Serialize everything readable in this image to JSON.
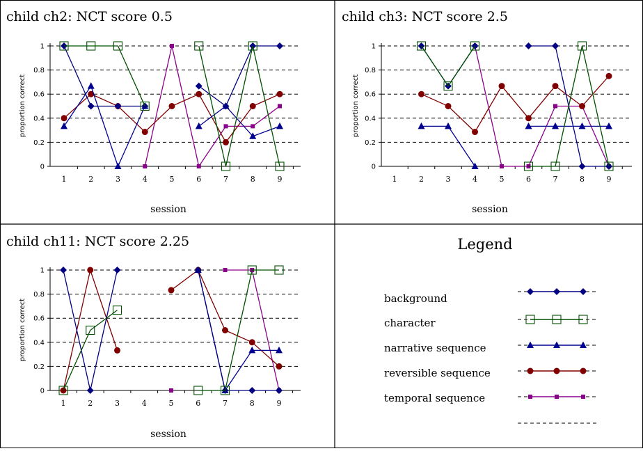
{
  "colors": {
    "background": "#000080",
    "character": "#005000",
    "narrative sequence": "#000090",
    "reversible sequence": "#800000",
    "temporal sequence": "#8B008B",
    "grid": "#000000"
  },
  "chart_data": [
    {
      "type": "line",
      "title": "child ch2: NCT score 0.5",
      "xlabel": "session",
      "ylabel": "proportion correct",
      "categories": [
        "1",
        "2",
        "3",
        "4",
        "5",
        "6",
        "7",
        "8",
        "9"
      ],
      "ylim": [
        0,
        1
      ],
      "yticks": [
        "0",
        "0.2",
        "0.4",
        "0.6",
        "0.8",
        "1"
      ],
      "grid": true,
      "series": [
        {
          "name": "background",
          "values": [
            1,
            0.5,
            0.5,
            0.5,
            null,
            0.667,
            0.5,
            1,
            1
          ]
        },
        {
          "name": "character",
          "values": [
            1,
            1,
            1,
            0.5,
            null,
            1,
            0,
            1,
            0
          ]
        },
        {
          "name": "narrative sequence",
          "values": [
            0.333,
            0.667,
            0,
            0.5,
            null,
            0.333,
            0.5,
            0.25,
            0.333
          ]
        },
        {
          "name": "reversible sequence",
          "values": [
            0.4,
            0.6,
            0.5,
            0.286,
            0.5,
            0.6,
            0.2,
            0.5,
            0.6
          ]
        },
        {
          "name": "temporal sequence",
          "values": [
            null,
            null,
            null,
            0,
            1,
            0,
            0.333,
            0.333,
            0.5
          ]
        }
      ]
    },
    {
      "type": "line",
      "title": "child ch3: NCT score 2.5",
      "xlabel": "session",
      "ylabel": "proportion correct",
      "categories": [
        "1",
        "2",
        "3",
        "4",
        "5",
        "6",
        "7",
        "8",
        "9"
      ],
      "ylim": [
        0,
        1
      ],
      "yticks": [
        "0",
        "0.2",
        "0.4",
        "0.6",
        "0.8",
        "1"
      ],
      "grid": true,
      "series": [
        {
          "name": "background",
          "values": [
            null,
            1,
            0.667,
            1,
            null,
            1,
            1,
            0,
            0
          ]
        },
        {
          "name": "character",
          "values": [
            null,
            1,
            0.667,
            1,
            null,
            0,
            0,
            1,
            0
          ]
        },
        {
          "name": "narrative sequence",
          "values": [
            null,
            0.333,
            0.333,
            0,
            null,
            0.333,
            0.333,
            0.333,
            0.333
          ]
        },
        {
          "name": "reversible sequence",
          "values": [
            null,
            0.6,
            0.5,
            0.286,
            0.667,
            0.4,
            0.667,
            0.5,
            0.75
          ]
        },
        {
          "name": "temporal sequence",
          "values": [
            null,
            null,
            null,
            1,
            0,
            0,
            0.5,
            0.5,
            0
          ]
        }
      ]
    },
    {
      "type": "line",
      "title": "child ch11: NCT score 2.25",
      "xlabel": "session",
      "ylabel": "proportion correct",
      "categories": [
        "1",
        "2",
        "3",
        "4",
        "5",
        "6",
        "7",
        "8",
        "9"
      ],
      "ylim": [
        0,
        1
      ],
      "yticks": [
        "0",
        "0.2",
        "0.4",
        "0.6",
        "0.8",
        "1"
      ],
      "grid": true,
      "series": [
        {
          "name": "background",
          "values": [
            1,
            0,
            1,
            null,
            null,
            1,
            0,
            0,
            0
          ]
        },
        {
          "name": "character",
          "values": [
            0,
            0.5,
            0.667,
            null,
            null,
            0,
            0,
            1,
            1
          ]
        },
        {
          "name": "narrative sequence",
          "values": [
            null,
            null,
            null,
            null,
            null,
            1,
            0,
            0.333,
            0.333
          ]
        },
        {
          "name": "reversible sequence",
          "values": [
            0,
            1,
            0.333,
            null,
            0.833,
            1,
            0.5,
            0.4,
            0.2
          ]
        },
        {
          "name": "temporal sequence",
          "values": [
            null,
            null,
            null,
            null,
            0,
            null,
            1,
            1,
            0
          ]
        }
      ]
    }
  ],
  "legend": {
    "title": "Legend",
    "items": [
      {
        "label": "background",
        "marker": "diamond",
        "color": "#000080"
      },
      {
        "label": "character",
        "marker": "open-square",
        "color": "#005000"
      },
      {
        "label": "narrative sequence",
        "marker": "triangle",
        "color": "#000090"
      },
      {
        "label": "reversible sequence",
        "marker": "circle",
        "color": "#800000"
      },
      {
        "label": "temporal sequence",
        "marker": "small-square",
        "color": "#8B008B"
      },
      {
        "label": "",
        "marker": "dashed",
        "color": "#000000"
      }
    ]
  }
}
